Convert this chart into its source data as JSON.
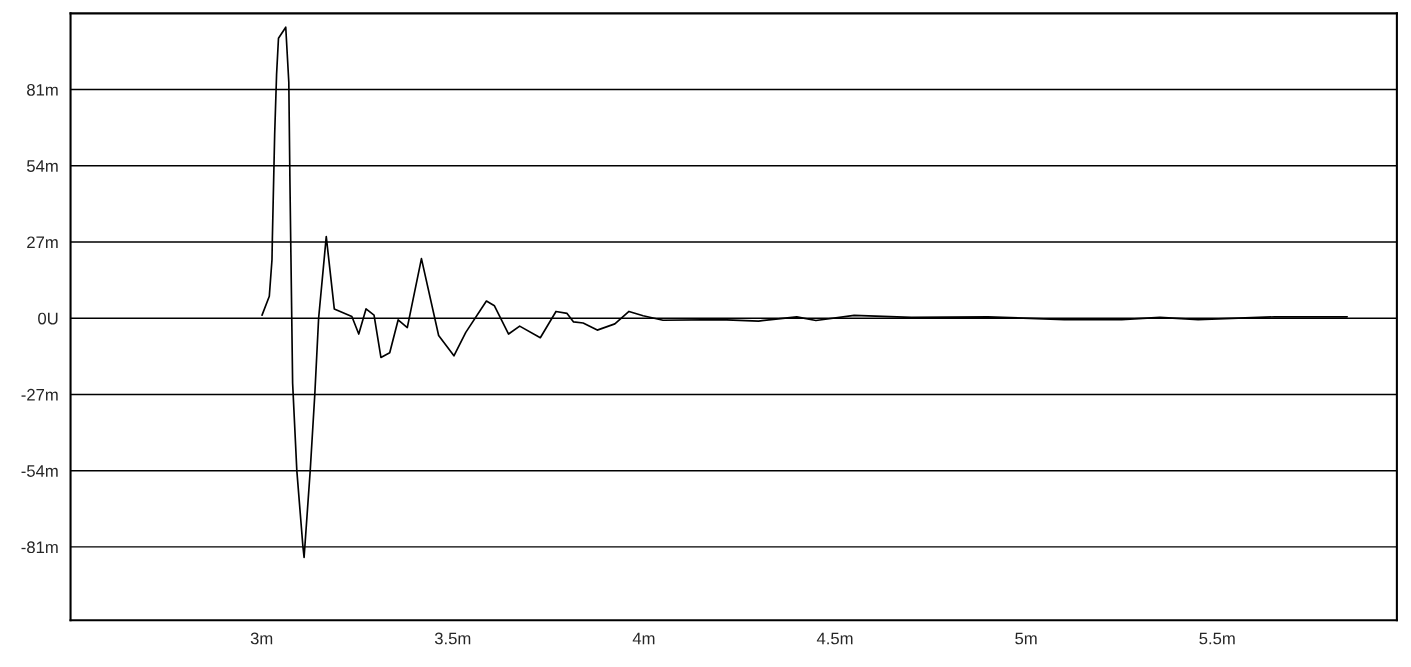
{
  "chart_data": {
    "type": "line",
    "x": [
      3.001,
      3.02,
      3.027,
      3.028,
      3.034,
      3.039,
      3.044,
      3.063,
      3.071,
      3.074,
      3.081,
      3.092,
      3.108,
      3.111,
      3.127,
      3.139,
      3.149,
      3.169,
      3.19,
      3.236,
      3.254,
      3.273,
      3.294,
      3.312,
      3.335,
      3.357,
      3.381,
      3.418,
      3.463,
      3.503,
      3.534,
      3.588,
      3.609,
      3.646,
      3.675,
      3.729,
      3.77,
      3.799,
      3.816,
      3.841,
      3.878,
      3.924,
      3.961,
      3.998,
      4.05,
      4.2,
      4.3,
      4.4,
      4.45,
      4.55,
      4.7,
      4.9,
      5.1,
      5.25,
      5.35,
      5.45,
      5.65,
      5.84
    ],
    "series": [
      {
        "color": "#000000",
        "values": [
          1.1,
          7.8,
          20.7,
          28.3,
          65,
          86.3,
          99.2,
          103.1,
          83.7,
          48,
          -23,
          -54,
          -81,
          -84.7,
          -54,
          -27,
          0,
          28.9,
          3.3,
          0.6,
          -5.6,
          3.3,
          1.1,
          -13.9,
          -12.2,
          -0.6,
          -3.3,
          21.1,
          -6.1,
          -13.3,
          -5,
          6.1,
          4.4,
          -5.6,
          -2.8,
          -6.9,
          2.4,
          1.7,
          -1.3,
          -1.7,
          -4.2,
          -2,
          2.4,
          0.9,
          -0.7,
          -0.5,
          -1,
          0.5,
          -0.8,
          1,
          0.3,
          0.5,
          -0.5,
          -0.5,
          0.3,
          -0.5,
          0.5,
          0.5
        ]
      }
    ],
    "xlim": [
      2.5,
      5.97
    ],
    "ylim": [
      -107,
      108
    ],
    "xticks": [
      {
        "value": 3,
        "label": "3m"
      },
      {
        "value": 3.5,
        "label": "3.5m"
      },
      {
        "value": 4,
        "label": "4m"
      },
      {
        "value": 4.5,
        "label": "4.5m"
      },
      {
        "value": 5,
        "label": "5m"
      },
      {
        "value": 5.5,
        "label": "5.5m"
      }
    ],
    "yticks": [
      {
        "value": -81,
        "label": "-81m"
      },
      {
        "value": -54,
        "label": "-54m"
      },
      {
        "value": -27,
        "label": "-27m"
      },
      {
        "value": 0,
        "label": "0U"
      },
      {
        "value": 27,
        "label": "27m"
      },
      {
        "value": 54,
        "label": "54m"
      },
      {
        "value": 81,
        "label": "81m"
      }
    ],
    "grid": "y",
    "line_style": "solid",
    "marker": "none"
  }
}
